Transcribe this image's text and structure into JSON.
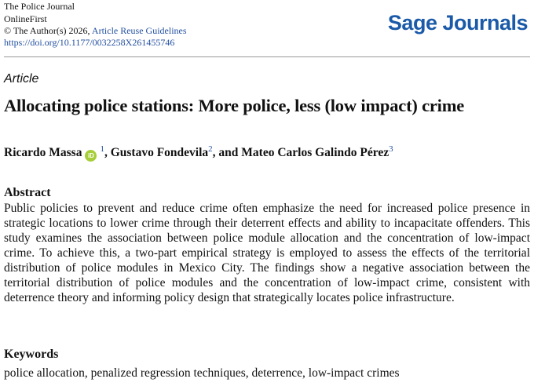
{
  "header": {
    "journal": "The Police Journal",
    "edition": "OnlineFirst",
    "copyright": "© The Author(s) 2026,",
    "reuse_link": "Article Reuse Guidelines",
    "doi": "https://doi.org/10.1177/0032258X261455746",
    "logo": "Sage Journals"
  },
  "article_type": "Article",
  "title": "Allocating police stations: More police, less (low impact) crime",
  "authors": [
    {
      "name": "Ricardo Massa",
      "affiliation": "1"
    },
    {
      "name": "Gustavo Fondevila",
      "affiliation": "2"
    },
    {
      "name": "Mateo Carlos Galindo Pérez",
      "affiliation": "3"
    }
  ],
  "author_separators": [
    ",",
    ", and"
  ],
  "abstract": {
    "heading": "Abstract",
    "text": "Public policies to prevent and reduce crime often emphasize the need for increased police presence in strategic locations to lower crime through their deterrent effects and ability to incapacitate offenders. This study examines the association between police module allocation and the concentration of low-impact crime. To achieve this, a two-part empirical strategy is employed to assess the effects of the territorial distribution of police modules in Mexico City. The findings show a negative association between the territorial distribution of police modules and the concentration of low-impact crime, consistent with deterrence theory and informing policy design that strategically locates police infrastructure."
  },
  "keywords": {
    "heading": "Keywords",
    "text": "police allocation, penalized regression techniques, deterrence, low-impact crimes"
  }
}
